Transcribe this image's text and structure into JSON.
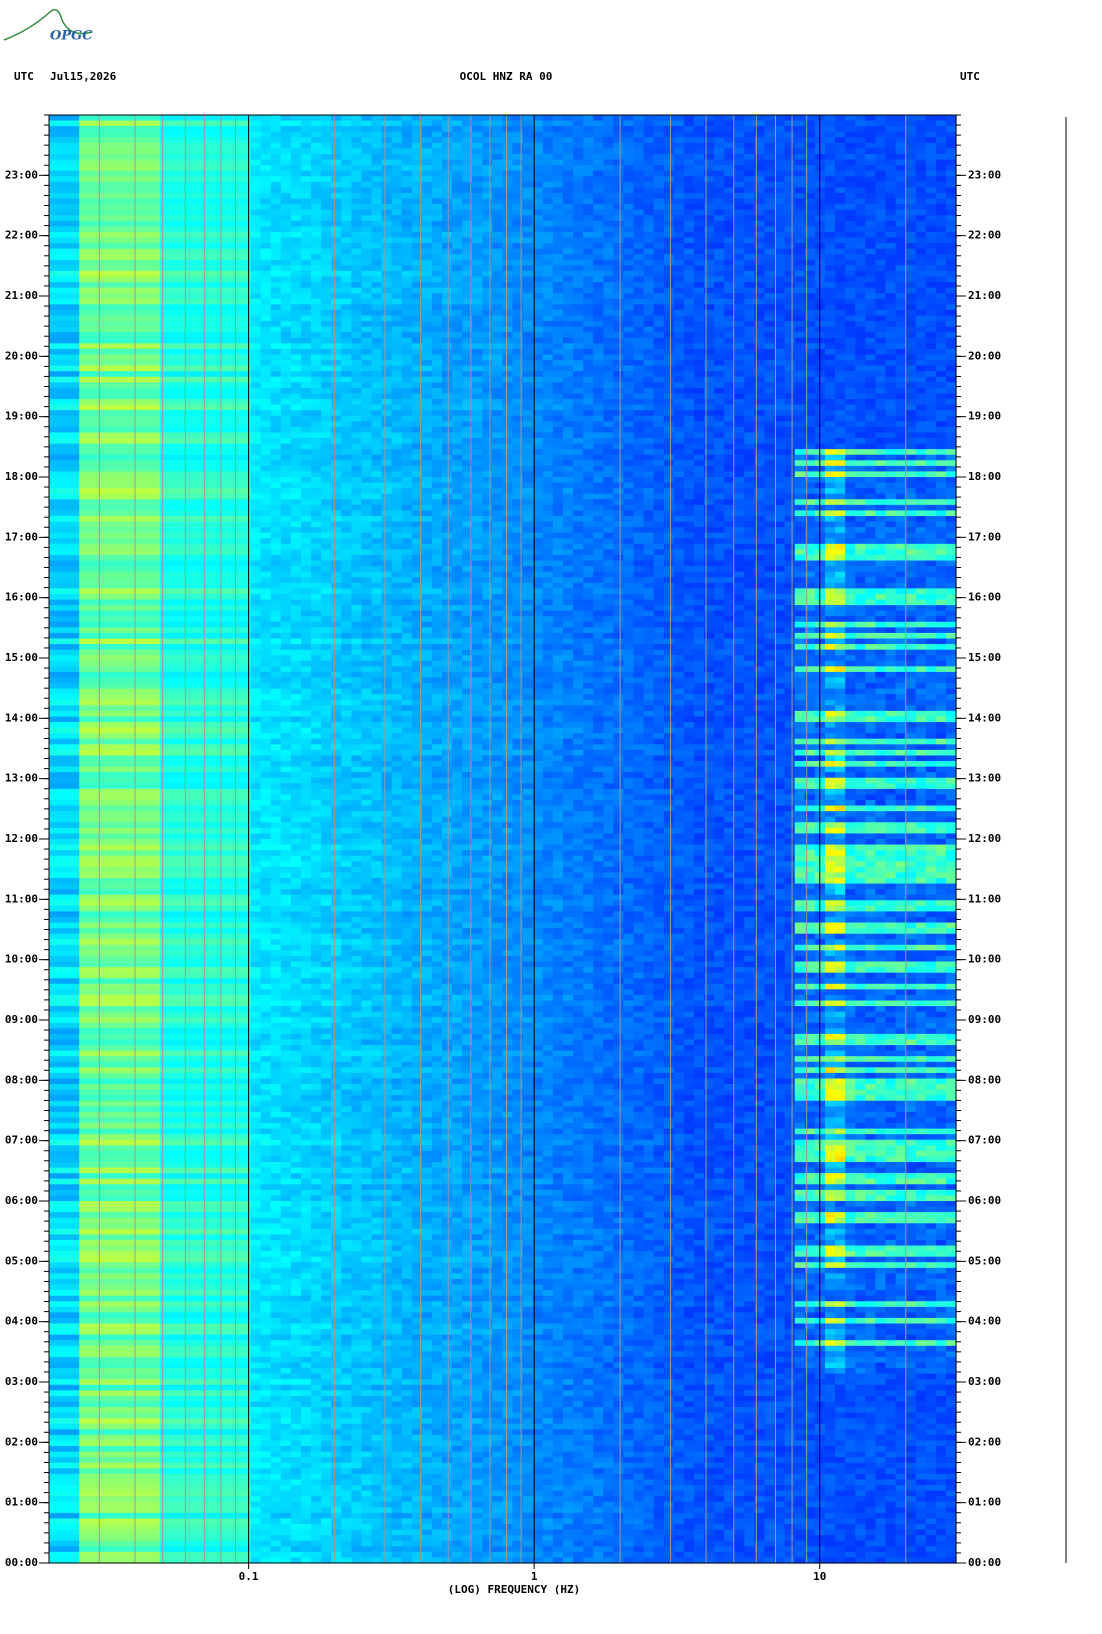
{
  "chart_data": {
    "type": "spectrogram",
    "logo": "OPGC",
    "left_label": "UTC",
    "date": "Jul15,2026",
    "title": "OCOL HNZ RA 00",
    "right_label": "UTC",
    "xlabel": "(LOG) FREQUENCY (HZ)",
    "xscale": "log",
    "xlim": [
      0.02,
      30
    ],
    "xticks": [
      0.1,
      1,
      10
    ],
    "ylim": [
      0,
      24
    ],
    "yticks": [
      {
        "value": 0,
        "label": "00:00"
      },
      {
        "value": 1,
        "label": "01:00"
      },
      {
        "value": 2,
        "label": "02:00"
      },
      {
        "value": 3,
        "label": "03:00"
      },
      {
        "value": 4,
        "label": "04:00"
      },
      {
        "value": 5,
        "label": "05:00"
      },
      {
        "value": 6,
        "label": "06:00"
      },
      {
        "value": 7,
        "label": "07:00"
      },
      {
        "value": 8,
        "label": "08:00"
      },
      {
        "value": 9,
        "label": "09:00"
      },
      {
        "value": 10,
        "label": "10:00"
      },
      {
        "value": 11,
        "label": "11:00"
      },
      {
        "value": 12,
        "label": "12:00"
      },
      {
        "value": 13,
        "label": "13:00"
      },
      {
        "value": 14,
        "label": "14:00"
      },
      {
        "value": 15,
        "label": "15:00"
      },
      {
        "value": 16,
        "label": "16:00"
      },
      {
        "value": 17,
        "label": "17:00"
      },
      {
        "value": 18,
        "label": "18:00"
      },
      {
        "value": 19,
        "label": "19:00"
      },
      {
        "value": 20,
        "label": "20:00"
      },
      {
        "value": 21,
        "label": "21:00"
      },
      {
        "value": 22,
        "label": "22:00"
      },
      {
        "value": 23,
        "label": "23:00"
      }
    ],
    "grid": true
  }
}
